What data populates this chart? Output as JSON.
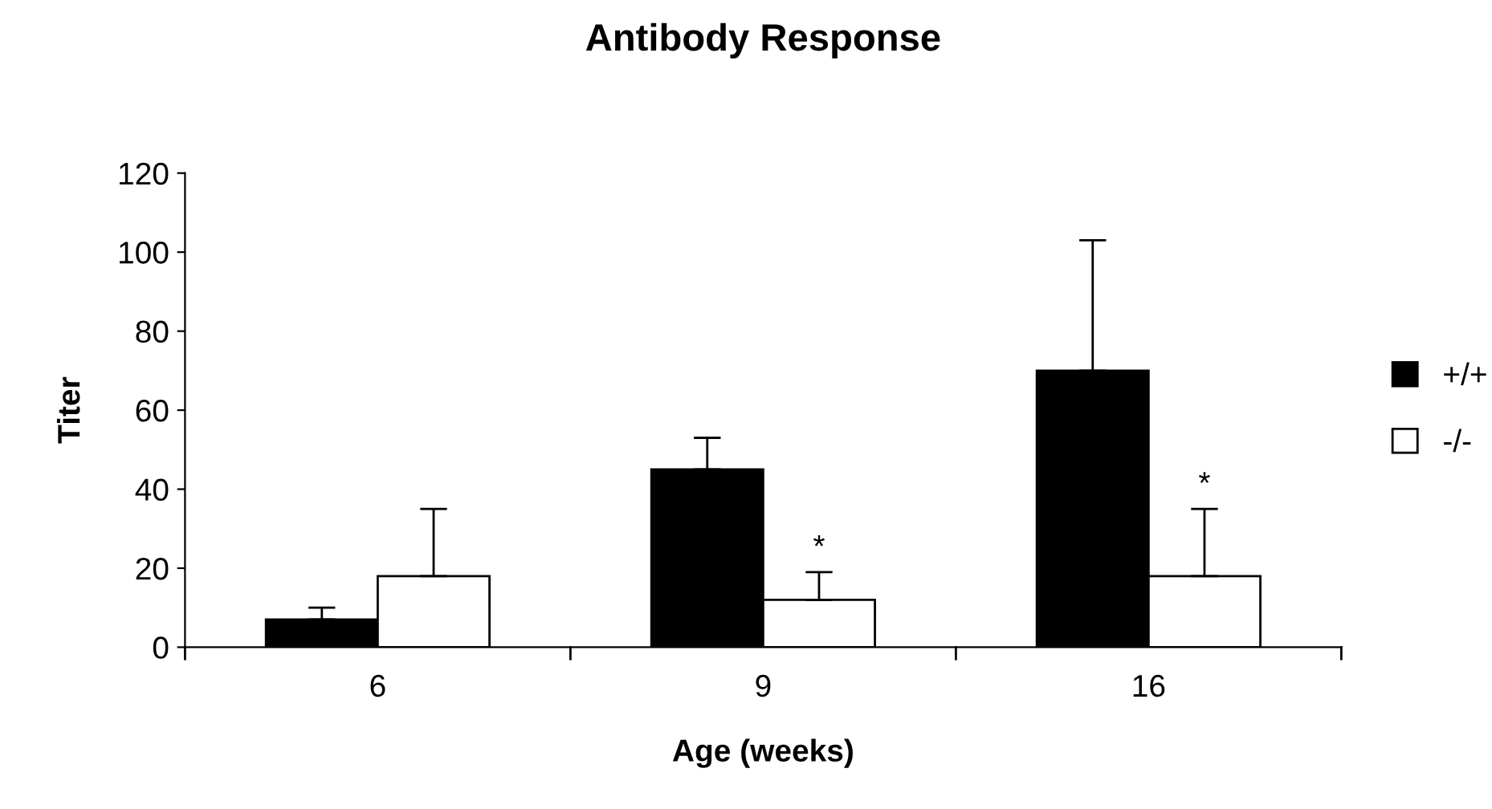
{
  "chart_data": {
    "type": "bar",
    "title": "Antibody Response",
    "xlabel": "Age (weeks)",
    "ylabel": "Titer",
    "categories": [
      "6",
      "9",
      "16"
    ],
    "series": [
      {
        "name": "+/+",
        "color": "#000000",
        "values": [
          7,
          45,
          70
        ],
        "errors": [
          [
            7,
            10
          ],
          [
            45,
            53
          ],
          [
            70,
            103
          ]
        ]
      },
      {
        "name": "-/-",
        "color": "#ffffff",
        "values": [
          18,
          12,
          18
        ],
        "errors": [
          [
            18,
            35
          ],
          [
            12,
            19
          ],
          [
            18,
            35
          ]
        ]
      }
    ],
    "ylim": [
      0,
      120
    ],
    "yticks": [
      0,
      20,
      40,
      60,
      80,
      100,
      120
    ],
    "grid": false,
    "legend": "right",
    "annotations": [
      {
        "text": "*",
        "x": "9",
        "y": 19
      },
      {
        "text": "*",
        "x": "16",
        "y": 35
      }
    ]
  }
}
